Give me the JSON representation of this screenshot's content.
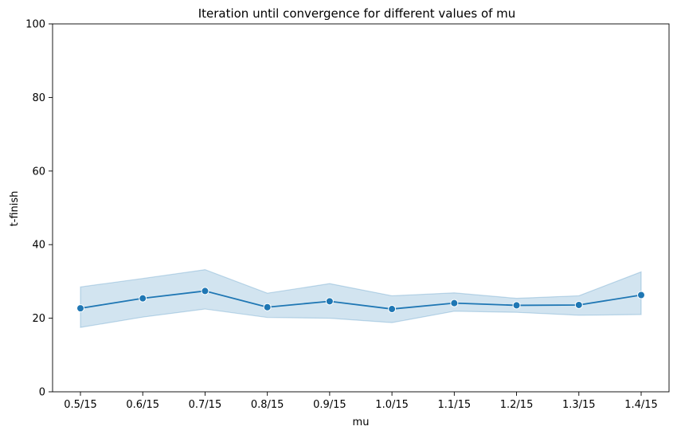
{
  "chart_data": {
    "type": "line",
    "title": "Iteration until convergence for different values of mu",
    "xlabel": "mu",
    "ylabel": "t-finish",
    "ylim": [
      0,
      100
    ],
    "yticks": [
      0,
      20,
      40,
      60,
      80,
      100
    ],
    "grid": false,
    "categories": [
      "0.5/15",
      "0.6/15",
      "0.7/15",
      "0.8/15",
      "0.9/15",
      "1.0/15",
      "1.1/15",
      "1.2/15",
      "1.3/15",
      "1.4/15"
    ],
    "series": [
      {
        "values": [
          22.7,
          25.4,
          27.4,
          23.0,
          24.6,
          22.5,
          24.1,
          23.5,
          23.6,
          26.3
        ],
        "ci_lower": [
          17.5,
          20.3,
          22.5,
          20.2,
          20.0,
          18.8,
          21.9,
          21.6,
          20.8,
          21.0
        ],
        "ci_upper": [
          28.5,
          30.8,
          33.2,
          26.8,
          29.4,
          26.1,
          26.9,
          25.4,
          26.1,
          32.6
        ],
        "color": "#1f77b4",
        "band_color": "#1f77b4",
        "marker": "circle"
      }
    ]
  }
}
